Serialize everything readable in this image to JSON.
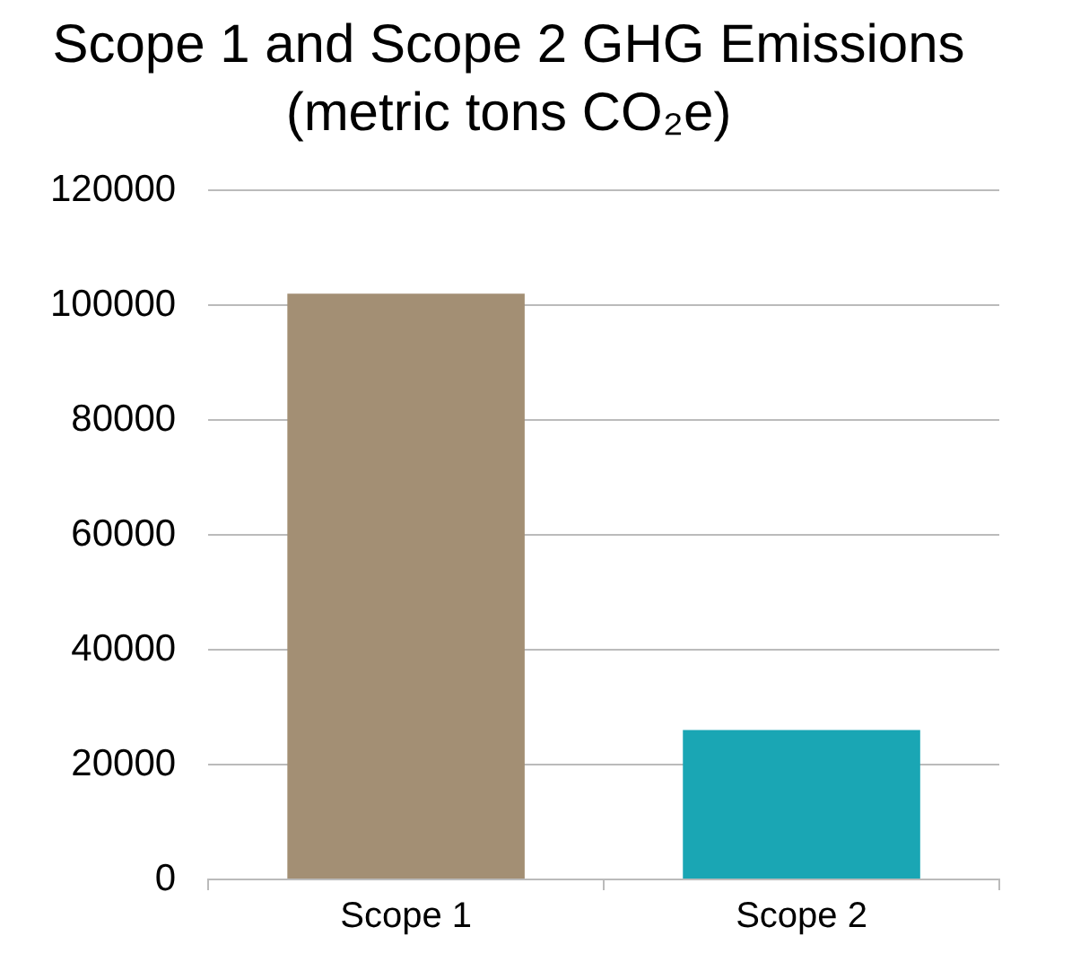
{
  "chart_data": {
    "type": "bar",
    "title": "Scope 1 and Scope 2 GHG Emissions",
    "subtitle": "(metric tons CO₂e)",
    "categories": [
      "Scope 1",
      "Scope 2"
    ],
    "values": [
      102000,
      26000
    ],
    "colors": [
      "#a38f74",
      "#1aa6b4"
    ],
    "ylim": [
      0,
      120000
    ],
    "yticks": [
      0,
      20000,
      40000,
      60000,
      80000,
      100000,
      120000
    ],
    "grid": "y",
    "legend": false
  }
}
